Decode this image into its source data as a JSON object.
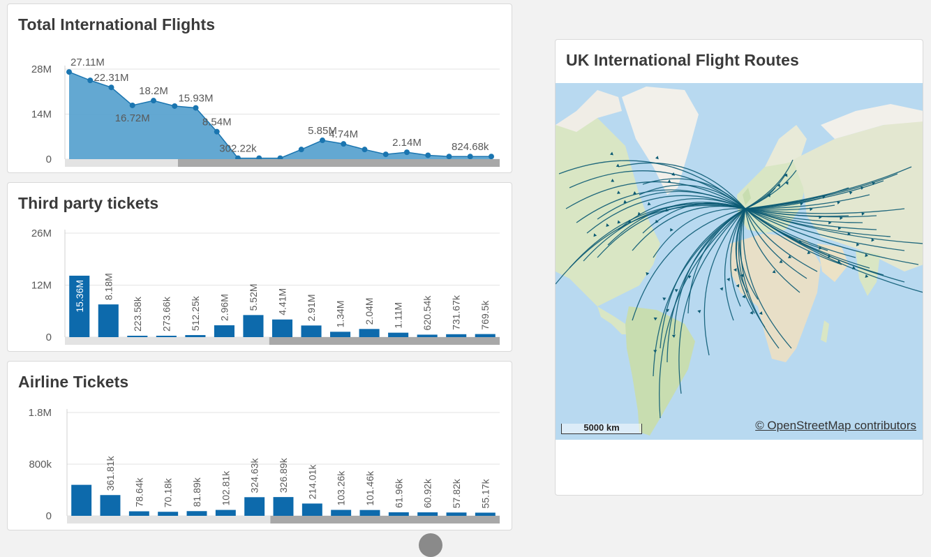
{
  "cards": {
    "flights": {
      "title": "Total International Flights"
    },
    "thirdparty": {
      "title": "Third party tickets"
    },
    "airline": {
      "title": "Airline Tickets"
    },
    "map": {
      "title": "UK International Flight Routes",
      "credit": "© OpenStreetMap contributors",
      "scale_label": "5000 km"
    }
  },
  "chart_data": [
    {
      "type": "area",
      "title": "Total International Flights",
      "y_ticks": [
        "28M",
        "14M",
        "0"
      ],
      "ylim": [
        0,
        28000000
      ],
      "values": [
        27110000,
        24500000,
        22310000,
        16720000,
        18200000,
        16500000,
        15930000,
        8540000,
        302220,
        302220,
        302220,
        3000000,
        5850000,
        4740000,
        3000000,
        1500000,
        2140000,
        1200000,
        824680,
        824680,
        824680
      ],
      "point_labels": [
        "27.11M",
        "",
        "22.31M",
        "16.72M",
        "18.2M",
        "",
        "15.93M",
        "8.54M",
        "302.22k",
        "",
        "",
        "",
        "5.85M",
        "4.74M",
        "",
        "",
        "2.14M",
        "",
        "",
        "824.68k",
        ""
      ],
      "scrollbar_thumb_start": 0.26,
      "color": "#5ba3d0",
      "line_color": "#1a75b0"
    },
    {
      "type": "bar",
      "title": "Third party tickets",
      "y_ticks": [
        "26M",
        "12M",
        "0"
      ],
      "ylim": [
        0,
        26000000
      ],
      "values": [
        15360000,
        8180000,
        223580,
        273660,
        512250,
        2960000,
        5520000,
        4410000,
        2910000,
        1340000,
        2040000,
        1110000,
        620540,
        731670,
        769500
      ],
      "labels": [
        "15.36M",
        "8.18M",
        "223.58k",
        "273.66k",
        "512.25k",
        "2.96M",
        "5.52M",
        "4.41M",
        "2.91M",
        "1.34M",
        "2.04M",
        "1.11M",
        "620.54k",
        "731.67k",
        "769.5k"
      ],
      "scrollbar_thumb_start": 0.47,
      "color": "#0d6aac"
    },
    {
      "type": "bar",
      "title": "Airline Tickets",
      "y_ticks": [
        "1.8M",
        "800k",
        "0"
      ],
      "ylim": [
        0,
        1800000
      ],
      "values": [
        540000,
        361810,
        78640,
        70180,
        81890,
        102810,
        324630,
        326890,
        214010,
        103260,
        101460,
        61960,
        60920,
        57820,
        55170
      ],
      "labels": [
        "",
        "361.81k",
        "78.64k",
        "70.18k",
        "81.89k",
        "102.81k",
        "324.63k",
        "326.89k",
        "214.01k",
        "103.26k",
        "101.46k",
        "61.96k",
        "60.92k",
        "57.82k",
        "55.17k"
      ],
      "scrollbar_thumb_start": 0.47,
      "color": "#0d6aac"
    }
  ],
  "map_colors": {
    "water": "#b8d9f0",
    "land": "#f0ede6",
    "green": "#c8ddb0",
    "route": "#0b5a73"
  }
}
